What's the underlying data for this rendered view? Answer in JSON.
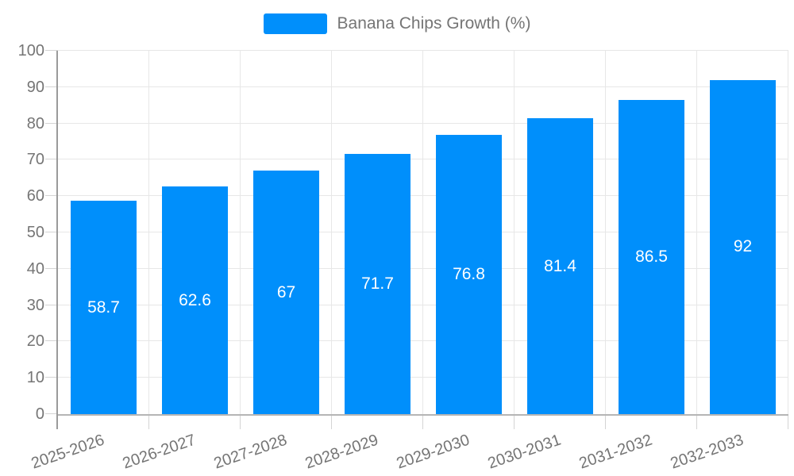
{
  "legend": {
    "label": "Banana Chips Growth (%)"
  },
  "chart_data": {
    "type": "bar",
    "title": "Banana Chips Growth (%)",
    "categories": [
      "2025-2026",
      "2026-2027",
      "2027-2028",
      "2028-2029",
      "2029-2030",
      "2030-2031",
      "2031-2032",
      "2032-2033"
    ],
    "values": [
      58.7,
      62.6,
      67,
      71.7,
      76.8,
      81.4,
      86.5,
      92
    ],
    "value_labels": [
      "58.7",
      "62.6",
      "67",
      "71.7",
      "76.8",
      "81.4",
      "86.5",
      "92"
    ],
    "xlabel": "",
    "ylabel": "",
    "ylim": [
      0,
      100
    ],
    "ytick_interval": 10,
    "ytick_labels": [
      "0",
      "10",
      "20",
      "30",
      "40",
      "50",
      "60",
      "70",
      "80",
      "90",
      "100"
    ],
    "grid": true,
    "legend_position": "top",
    "bar_color": "#008FFB",
    "data_label_color": "#ffffff",
    "axis_label_color": "#757575",
    "gridline_color": "#e7e7e7",
    "tick_color": "#d4d4d4",
    "y_axis_line_color": "#9a9a9a",
    "x_axis_line_color": "#b5b5b5"
  }
}
